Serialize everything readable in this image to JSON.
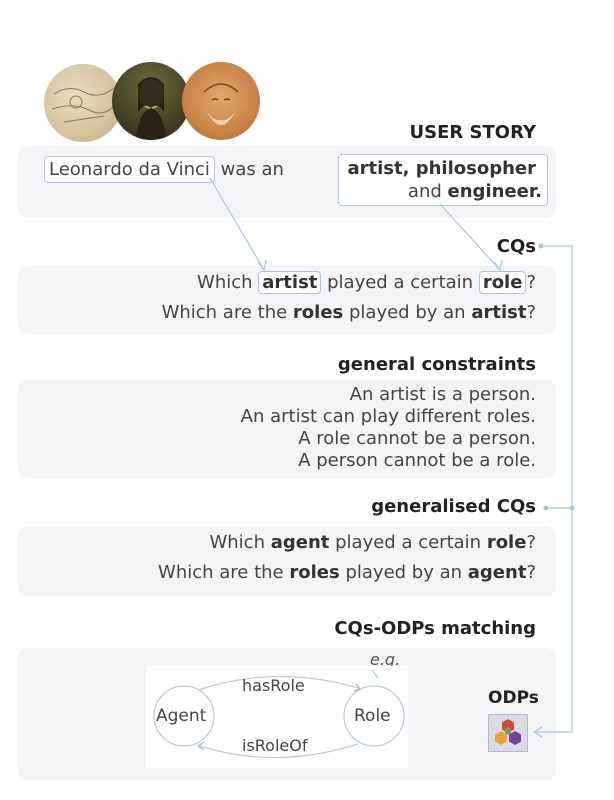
{
  "user_story": {
    "heading": "USER STORY",
    "entity": "Leonardo da Vinci",
    "text_mid": "was an",
    "roles_line1": "artist, philosopher",
    "roles_line2_pre": "and",
    "roles_line2_em": "engineer."
  },
  "cqs": {
    "heading": "CQs",
    "q1_pre": "Which",
    "q1_artist": "artist",
    "q1_mid": "played a certain",
    "q1_role": "role",
    "q1_end": "?",
    "q2_pre": "Which are the",
    "q2_roles": "roles",
    "q2_mid": "played by an",
    "q2_artist": "artist",
    "q2_end": "?"
  },
  "constraints": {
    "heading": "general constraints",
    "lines": [
      "An artist is a person.",
      "An artist can play different roles.",
      "A role cannot be a person.",
      "A person cannot be a role."
    ]
  },
  "generalised": {
    "heading": "generalised CQs",
    "q1_pre": "Which",
    "q1_agent": "agent",
    "q1_mid": "played a certain",
    "q1_role": "role",
    "q1_end": "?",
    "q2_pre": "Which are the",
    "q2_roles": "roles",
    "q2_mid": "played by an",
    "q2_agent": "agent",
    "q2_end": "?"
  },
  "matching": {
    "heading": "CQs-ODPs matching",
    "eg": "e.g.",
    "node_agent": "Agent",
    "node_role": "Role",
    "edge_top": "hasRole",
    "edge_bottom": "isRoleOf"
  },
  "odps_label": "ODPs",
  "colors": {
    "panel": "#f4f4f6",
    "box_border": "#a9c4e3",
    "connector": "#a9c4e3",
    "odp_red": "#d9453d",
    "odp_purple": "#7b3fa0",
    "odp_green": "#6aa84f",
    "odp_orange": "#e8a33d"
  }
}
